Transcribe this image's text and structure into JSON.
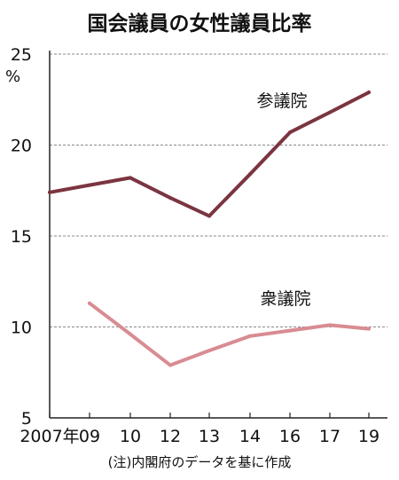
{
  "chart_data": {
    "type": "line",
    "title": "国会議員の女性議員比率",
    "unit_label": "%",
    "categories": [
      "2007年",
      "09",
      "10",
      "12",
      "13",
      "14",
      "16",
      "17",
      "19"
    ],
    "series": [
      {
        "name": "参議院",
        "values": [
          17.4,
          17.8,
          18.2,
          17.1,
          16.1,
          18.4,
          20.7,
          21.8,
          22.9
        ],
        "color": "#7b3540"
      },
      {
        "name": "衆議院",
        "values": [
          null,
          11.3,
          9.6,
          7.9,
          8.7,
          9.5,
          9.8,
          10.1,
          9.9
        ],
        "color": "#d88c92"
      }
    ],
    "y_ticks": [
      5,
      10,
      15,
      20,
      25
    ],
    "ylim": [
      5,
      25
    ],
    "grid": true,
    "note": "(注)内閣府のデータを基に作成"
  }
}
